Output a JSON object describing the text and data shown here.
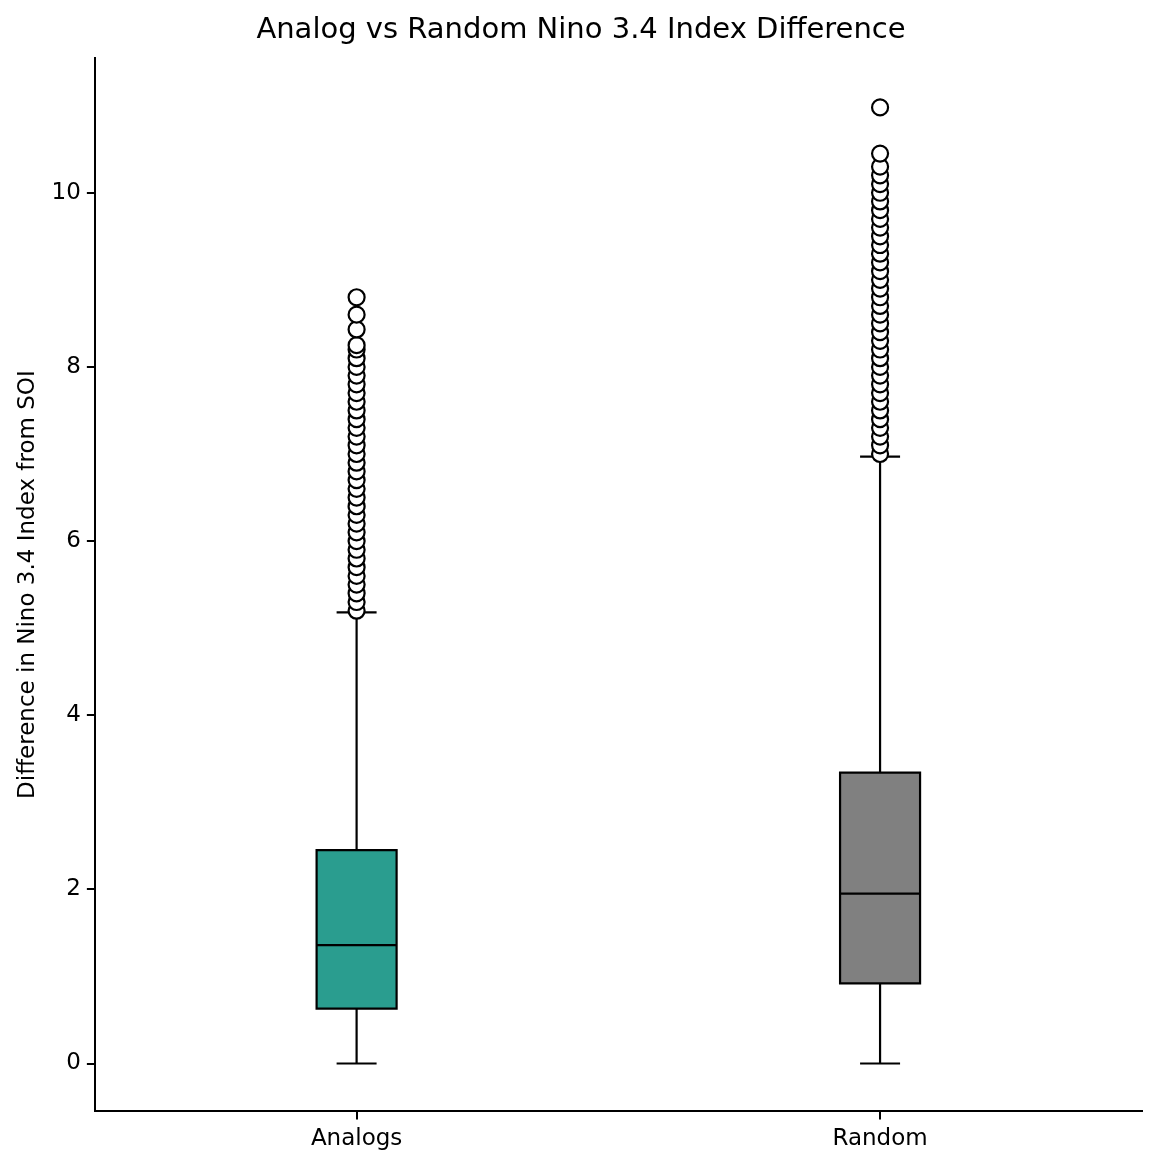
{
  "chart_data": {
    "type": "box",
    "title": "Analog vs Random Nino 3.4 Index Difference",
    "ylabel": "Difference in Nino 3.4 Index from SOI",
    "categories": [
      "Analogs",
      "Random"
    ],
    "colors": [
      "#2a9d8f",
      "#808080"
    ],
    "boxes": [
      {
        "low": 0,
        "q1": 0.63,
        "median": 1.36,
        "q3": 2.45,
        "high": 5.18,
        "outliers": [
          5.2,
          5.3,
          5.4,
          5.5,
          5.6,
          5.7,
          5.8,
          5.9,
          6.0,
          6.1,
          6.2,
          6.3,
          6.4,
          6.5,
          6.6,
          6.7,
          6.8,
          6.9,
          7.0,
          7.1,
          7.2,
          7.3,
          7.4,
          7.5,
          7.6,
          7.7,
          7.8,
          7.9,
          8.0,
          8.1,
          8.2,
          8.25,
          8.43,
          8.6,
          8.8
        ]
      },
      {
        "low": 0,
        "q1": 0.92,
        "median": 1.95,
        "q3": 3.34,
        "high": 6.97,
        "outliers": [
          7.0,
          7.1,
          7.2,
          7.3,
          7.4,
          7.5,
          7.6,
          7.7,
          7.8,
          7.9,
          8.0,
          8.1,
          8.2,
          8.3,
          8.4,
          8.5,
          8.6,
          8.7,
          8.8,
          8.9,
          9.0,
          9.1,
          9.2,
          9.3,
          9.4,
          9.5,
          9.6,
          9.7,
          9.8,
          9.9,
          10.0,
          10.1,
          10.2,
          10.3,
          10.45,
          10.98
        ]
      }
    ],
    "ylim": [
      -0.55,
      11.55
    ],
    "yticks": [
      0,
      2,
      4,
      6,
      8,
      10
    ],
    "grid": false
  }
}
